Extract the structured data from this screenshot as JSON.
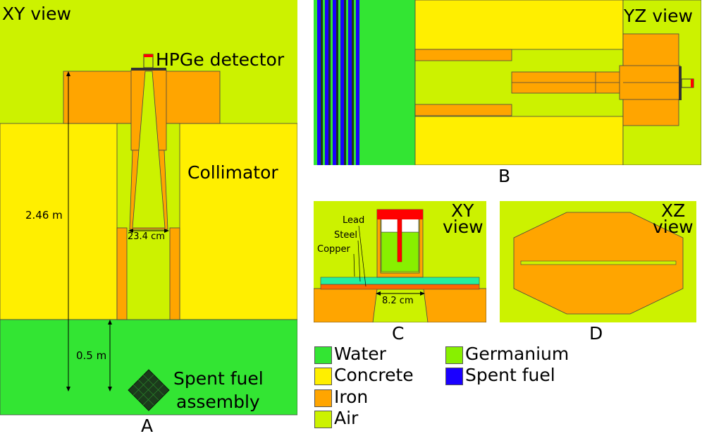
{
  "colors": {
    "water": "#33e533",
    "concrete": "#ffef00",
    "iron": "#ffa500",
    "air": "#ccf200",
    "germanium": "#88f000",
    "spent_fuel": "#1a00ff",
    "copper": "#ff6600",
    "steel": "#22f0a0",
    "lead": "#ffa000",
    "detector_red": "#ff0000"
  },
  "panel_a": {
    "view_label": "XY view",
    "detector_label": "HPGe detector",
    "collimator_label": "Collimator",
    "height_label": "2.46 m",
    "width_label": "23.4 cm",
    "depth_label": "0.5 m",
    "fuel_label_line1": "Spent fuel",
    "fuel_label_line2": "assembly",
    "caption": "A"
  },
  "panel_b": {
    "view_label": "YZ view",
    "caption": "B"
  },
  "panel_c": {
    "view_line1": "XY",
    "view_line2": "view",
    "lead_label": "Lead",
    "steel_label": "Steel",
    "copper_label": "Copper",
    "gap_label": "8.2 cm",
    "caption": "C"
  },
  "panel_d": {
    "view_line1": "XZ",
    "view_line2": "view",
    "caption": "D"
  },
  "legend": [
    {
      "label": "Water",
      "color": "#33e533"
    },
    {
      "label": "Concrete",
      "color": "#ffef00"
    },
    {
      "label": "Iron",
      "color": "#ffa500"
    },
    {
      "label": "Air",
      "color": "#ccf200"
    },
    {
      "label": "Germanium",
      "color": "#88f000"
    },
    {
      "label": "Spent fuel",
      "color": "#1a00ff"
    }
  ]
}
